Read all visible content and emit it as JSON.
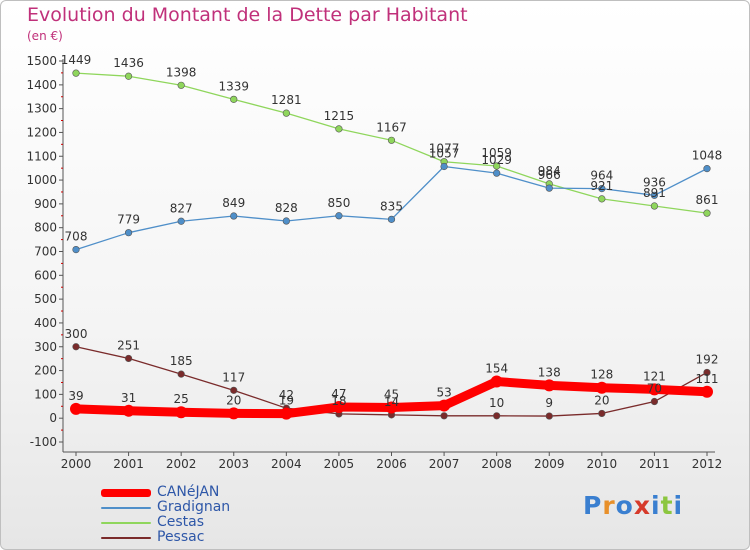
{
  "chart_data": {
    "type": "line",
    "title": "Evolution du Montant de la Dette par Habitant",
    "subtitle": "(en €)",
    "categories": [
      "2000",
      "2001",
      "2002",
      "2003",
      "2004",
      "2005",
      "2006",
      "2007",
      "2008",
      "2009",
      "2010",
      "2011",
      "2012"
    ],
    "y_ticks": [
      "-100",
      "0",
      "100",
      "200",
      "300",
      "400",
      "500",
      "600",
      "700",
      "800",
      "900",
      "1000",
      "1100",
      "1200",
      "1300",
      "1400",
      "1500"
    ],
    "ylim": [
      -100,
      1500
    ],
    "grid": false,
    "legend_position": "bottom-left",
    "series": [
      {
        "name": "CANéJAN",
        "color": "#ff0000",
        "values": [
          39,
          31,
          25,
          20,
          19,
          47,
          45,
          53,
          154,
          138,
          128,
          121,
          111
        ],
        "labels": [
          "39",
          "31",
          "25",
          "20",
          "19",
          "47",
          "45",
          "53",
          "154",
          "138",
          "128",
          "121",
          "111"
        ]
      },
      {
        "name": "Gradignan",
        "color": "#4f8fc9",
        "values": [
          708,
          779,
          827,
          849,
          828,
          850,
          835,
          1057,
          1029,
          966,
          964,
          936,
          1048
        ],
        "labels": [
          "708",
          "779",
          "827",
          "849",
          "828",
          "850",
          "835",
          "1057",
          "1029",
          "966",
          "964",
          "936",
          "1048"
        ]
      },
      {
        "name": "Cestas",
        "color": "#8fd65c",
        "values": [
          1449,
          1436,
          1398,
          1339,
          1281,
          1215,
          1167,
          1077,
          1059,
          984,
          921,
          891,
          861
        ],
        "labels": [
          "1449",
          "1436",
          "1398",
          "1339",
          "1281",
          "1215",
          "1167",
          "1077",
          "1059",
          "984",
          "921",
          "891",
          "861"
        ]
      },
      {
        "name": "Pessac",
        "color": "#7a2b2b",
        "values": [
          300,
          251,
          185,
          117,
          42,
          18,
          14,
          10,
          10,
          9,
          20,
          70,
          192
        ],
        "labels": [
          "300",
          "251",
          "185",
          "117",
          "42",
          "18",
          "14",
          "",
          "10",
          "9",
          "20",
          "70",
          "192"
        ]
      }
    ]
  },
  "logo": {
    "letters": [
      "P",
      "r",
      "o",
      "x",
      "i",
      "t",
      "i"
    ],
    "colors": [
      "#3a7fd0",
      "#e8902a",
      "#3a7fd0",
      "#d63a2a",
      "#3a7fd0",
      "#8cc63f",
      "#3a7fd0"
    ]
  }
}
